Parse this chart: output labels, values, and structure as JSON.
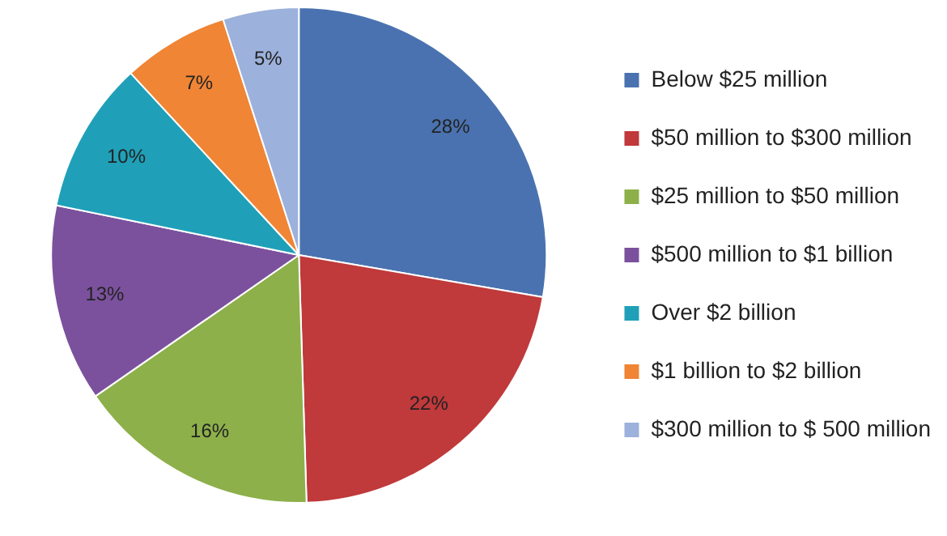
{
  "chart_data": {
    "type": "pie",
    "categories": [
      "Below $25 million",
      "$50 million to $300 million",
      "$25 million to $50 million",
      "$500 million to $1 billion",
      "Over $2 billion",
      "$1 billion to $2 billion",
      "$300 million to $ 500 million"
    ],
    "values": [
      28,
      22,
      16,
      13,
      10,
      7,
      5
    ],
    "colors": [
      "#4a72b0",
      "#c0393b",
      "#8db04a",
      "#7b519d",
      "#1fa0b8",
      "#ef8535",
      "#9cb1db"
    ],
    "value_labels": [
      "28%",
      "22%",
      "16%",
      "13%",
      "10%",
      "7%",
      "5%"
    ],
    "legend": "right"
  }
}
